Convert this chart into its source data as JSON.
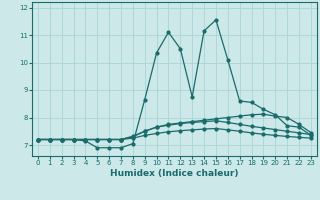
{
  "xlabel": "Humidex (Indice chaleur)",
  "background_color": "#cce8e8",
  "line_color": "#1a6b6b",
  "grid_color": "#aad4d4",
  "xlim": [
    -0.5,
    23.5
  ],
  "ylim": [
    6.6,
    12.2
  ],
  "yticks": [
    7,
    8,
    9,
    10,
    11,
    12
  ],
  "xticks": [
    0,
    1,
    2,
    3,
    4,
    5,
    6,
    7,
    8,
    9,
    10,
    11,
    12,
    13,
    14,
    15,
    16,
    17,
    18,
    19,
    20,
    21,
    22,
    23
  ],
  "series": [
    [
      7.2,
      7.2,
      7.2,
      7.2,
      7.15,
      6.9,
      6.9,
      6.9,
      7.05,
      8.65,
      10.35,
      11.1,
      10.5,
      8.75,
      11.15,
      11.55,
      10.1,
      8.6,
      8.55,
      8.3,
      8.1,
      7.7,
      7.65,
      7.35
    ],
    [
      7.2,
      7.2,
      7.2,
      7.2,
      7.2,
      7.2,
      7.2,
      7.2,
      7.3,
      7.5,
      7.65,
      7.75,
      7.8,
      7.85,
      7.9,
      7.95,
      8.0,
      8.05,
      8.1,
      8.12,
      8.05,
      8.0,
      7.75,
      7.45
    ],
    [
      7.2,
      7.2,
      7.2,
      7.2,
      7.2,
      7.2,
      7.2,
      7.2,
      7.32,
      7.5,
      7.65,
      7.72,
      7.78,
      7.82,
      7.85,
      7.88,
      7.82,
      7.75,
      7.68,
      7.62,
      7.56,
      7.5,
      7.44,
      7.38
    ],
    [
      7.2,
      7.2,
      7.2,
      7.2,
      7.2,
      7.2,
      7.2,
      7.2,
      7.25,
      7.35,
      7.42,
      7.48,
      7.52,
      7.55,
      7.58,
      7.6,
      7.55,
      7.5,
      7.44,
      7.39,
      7.35,
      7.31,
      7.28,
      7.25
    ]
  ]
}
